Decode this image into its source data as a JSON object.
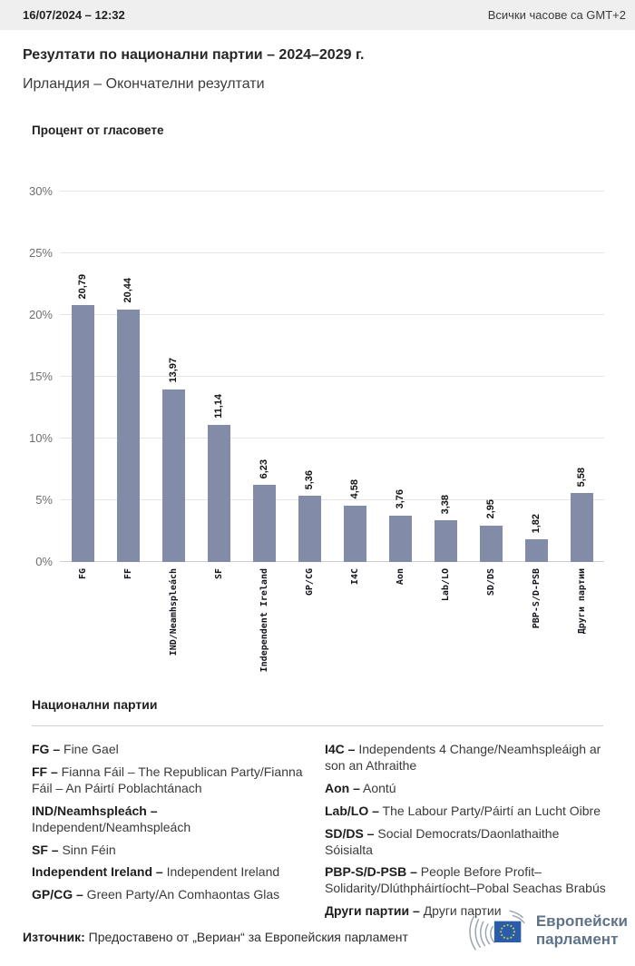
{
  "header": {
    "datetime": "16/07/2024 – 12:32",
    "timezone_note": "Всички часове са GMT+2"
  },
  "title": "Резултати по национални партии – 2024–2029 г.",
  "subtitle": "Ирландия – Окончателни резултати",
  "chart_data": {
    "type": "bar",
    "title": "Процент от гласовете",
    "categories": [
      "FG",
      "FF",
      "IND/Neamhspleách",
      "SF",
      "Independent Ireland",
      "GP/CG",
      "I4C",
      "Aon",
      "Lab/LO",
      "SD/DS",
      "PBP-S/D-PSB",
      "Други партии"
    ],
    "values": [
      20.79,
      20.44,
      13.97,
      11.14,
      6.23,
      5.36,
      4.58,
      3.76,
      3.38,
      2.95,
      1.82,
      5.58
    ],
    "value_labels": [
      "20,79",
      "20,44",
      "13,97",
      "11,14",
      "6,23",
      "5,36",
      "4,58",
      "3,76",
      "3,38",
      "2,95",
      "1,82",
      "5,58"
    ],
    "ylabel": "Процент от гласовете",
    "xlabel": "",
    "ylim": [
      0,
      30
    ],
    "ytick_step": 5,
    "ytick_labels": [
      "0%",
      "5%",
      "10%",
      "15%",
      "20%",
      "25%",
      "30%"
    ],
    "grid": true,
    "legend_position": "none",
    "bar_color": "#828CA8"
  },
  "legend": {
    "heading": "Национални партии",
    "columns": [
      [
        {
          "term": "FG –",
          "def": "Fine Gael"
        },
        {
          "term": "FF –",
          "def": "Fianna Fáil – The Republican Party/Fianna Fáil – An Páirtí Poblachtánach"
        },
        {
          "term": "IND/Neamhspleách –",
          "def": "Independent/Neamhspleách",
          "break": true
        },
        {
          "term": "SF –",
          "def": "Sinn Féin"
        },
        {
          "term": "Independent Ireland  –",
          "def": "Independent Ireland"
        },
        {
          "term": "GP/CG –",
          "def": "Green Party/An Comhaontas Glas"
        }
      ],
      [
        {
          "term": "I4C –",
          "def": "Independents 4 Change/Neamhspleáigh ar son an Athraithe"
        },
        {
          "term": "Aon –",
          "def": "Aontú"
        },
        {
          "term": "Lab/LO –",
          "def": "The Labour Party/Páirtí an Lucht Oibre"
        },
        {
          "term": "SD/DS –",
          "def": "Social Democrats/Daonlathaithe Sóisialta"
        },
        {
          "term": "PBP-S/D-PSB –",
          "def": "People Before Profit–Solidarity/Dlúthpháirtíocht–Pobal Seachas Brabús"
        },
        {
          "term": "Други партии –",
          "def": "Други партии"
        }
      ]
    ]
  },
  "footer": {
    "source_label": "Източник:",
    "source_text": "Предоставено от „Вериан“ за Европейския парламент",
    "logo_line1": "Европейски",
    "logo_line2": "парламент",
    "logo_colors": {
      "arcs": "#9aa5ae",
      "flag": "#2b5ca9",
      "stars": "#c9cf4e",
      "text": "#5e7387"
    }
  }
}
